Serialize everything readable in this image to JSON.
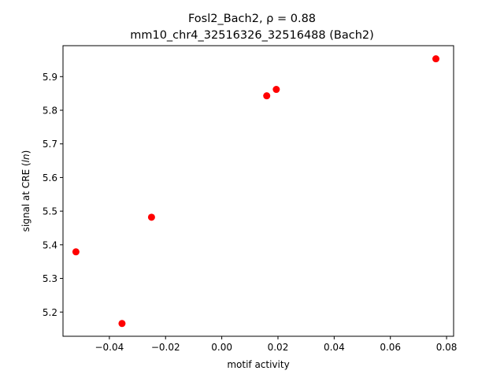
{
  "chart_data": {
    "type": "scatter",
    "title_line1": "Fosl2_Bach2, ρ = 0.88",
    "title_line2": "mm10_chr4_32516326_32516488 (Bach2)",
    "xlabel": "motif activity",
    "ylabel_prefix": "signal at CRE (",
    "ylabel_italic": "ln",
    "ylabel_suffix": ")",
    "xlim": [
      -0.0565,
      0.0825
    ],
    "ylim": [
      5.128,
      5.992
    ],
    "x_ticks": [
      -0.04,
      -0.02,
      0.0,
      0.02,
      0.04,
      0.06,
      0.08
    ],
    "x_tick_labels": [
      "−0.04",
      "−0.02",
      "0.00",
      "0.02",
      "0.04",
      "0.06",
      "0.08"
    ],
    "y_ticks": [
      5.2,
      5.3,
      5.4,
      5.5,
      5.6,
      5.7,
      5.8,
      5.9
    ],
    "y_tick_labels": [
      "5.2",
      "5.3",
      "5.4",
      "5.5",
      "5.6",
      "5.7",
      "5.8",
      "5.9"
    ],
    "point_color": "#ff0000",
    "grid": false,
    "x": [
      -0.0519,
      -0.0355,
      -0.025,
      0.016,
      0.0194,
      0.0762
    ],
    "y": [
      5.379,
      5.166,
      5.482,
      5.843,
      5.862,
      5.953
    ]
  }
}
